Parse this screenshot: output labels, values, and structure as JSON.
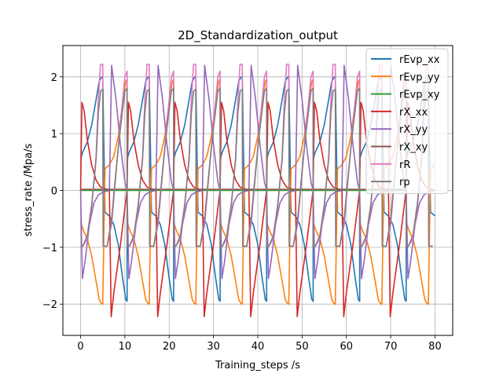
{
  "chart_data": {
    "type": "line",
    "title": "2D_Standardization_output",
    "xlabel": "Training_steps /s",
    "ylabel": "stress_rate /Mpa/s",
    "xlim": [
      -4,
      84
    ],
    "ylim": [
      -2.55,
      2.55
    ],
    "xticks": [
      0,
      10,
      20,
      30,
      40,
      50,
      60,
      70,
      80
    ],
    "yticks": [
      -2,
      -1,
      0,
      1,
      2
    ],
    "grid": true,
    "legend_position": "top-right",
    "cycle_period": 10.5,
    "series": [
      {
        "name": "rEvp_xx",
        "color": "#1f77b4",
        "x": [
          0,
          0.5,
          1.5,
          2.5,
          3.5,
          4.2,
          4.8,
          5.0,
          5.5,
          6.5,
          7.5,
          8.5,
          9.5,
          10.2,
          10.5
        ],
        "y": [
          0.55,
          0.68,
          0.85,
          1.15,
          1.6,
          1.92,
          2.0,
          2.0,
          -0.38,
          -0.45,
          -0.6,
          -0.95,
          -1.55,
          -1.92,
          -1.95
        ]
      },
      {
        "name": "rEvp_yy",
        "color": "#ff7f0e",
        "x": [
          0,
          0.5,
          1.5,
          2.5,
          3.5,
          4.2,
          4.8,
          5.0,
          5.5,
          6.5,
          7.5,
          8.5,
          9.5,
          10.2,
          10.5
        ],
        "y": [
          -0.55,
          -0.68,
          -0.85,
          -1.15,
          -1.6,
          -1.92,
          -2.0,
          -2.0,
          0.38,
          0.45,
          0.6,
          0.95,
          1.55,
          1.92,
          1.95
        ]
      },
      {
        "name": "rEvp_xy",
        "color": "#2ca02c",
        "x": [
          0,
          10.5
        ],
        "y": [
          0.0,
          0.0
        ]
      },
      {
        "name": "rX_xx",
        "color": "#d62728",
        "x": [
          0,
          0.3,
          0.8,
          1.5,
          2.5,
          3.5,
          4.5,
          5.5,
          6.5,
          6.9,
          7.5,
          9,
          10.4,
          10.5
        ],
        "y": [
          0.0,
          1.55,
          1.4,
          0.9,
          0.45,
          0.18,
          0.06,
          0.03,
          0.0,
          -2.22,
          -1.8,
          -0.95,
          -0.05,
          0.0
        ]
      },
      {
        "name": "rX_yy",
        "color": "#9467bd",
        "x": [
          0,
          0.4,
          1.0,
          2.0,
          3.0,
          4.0,
          5.0,
          6.5,
          7.0,
          8.0,
          9.0,
          10.0,
          10.5
        ],
        "y": [
          0.0,
          -1.55,
          -1.25,
          -0.6,
          -0.22,
          -0.08,
          -0.03,
          0.0,
          2.2,
          1.6,
          0.8,
          0.15,
          0.0
        ]
      },
      {
        "name": "rX_xy",
        "color": "#8c564b",
        "x": [
          0,
          10.5
        ],
        "y": [
          0.02,
          0.02
        ]
      },
      {
        "name": "rR",
        "color": "#e377c2",
        "x": [
          0,
          0.5,
          1.5,
          2.5,
          3.5,
          4.0,
          4.5,
          5.0,
          5.1,
          6.0,
          7.0,
          8.0,
          9.0,
          10.0,
          10.5
        ],
        "y": [
          -0.98,
          -0.98,
          -0.85,
          -0.3,
          0.6,
          1.6,
          2.22,
          2.22,
          -0.98,
          -0.98,
          -0.6,
          0.3,
          1.2,
          2.0,
          2.1
        ]
      },
      {
        "name": "rp",
        "color": "#7f7f7f",
        "x": [
          0,
          0.5,
          1.5,
          2.5,
          3.5,
          4.0,
          4.5,
          5.0,
          5.1,
          6.0,
          7.0,
          8.0,
          9.0,
          10.0,
          10.5
        ],
        "y": [
          -0.98,
          -0.98,
          -0.8,
          -0.25,
          0.55,
          1.35,
          1.75,
          1.78,
          -0.98,
          -0.98,
          -0.5,
          0.35,
          1.1,
          1.75,
          1.8
        ]
      }
    ]
  }
}
